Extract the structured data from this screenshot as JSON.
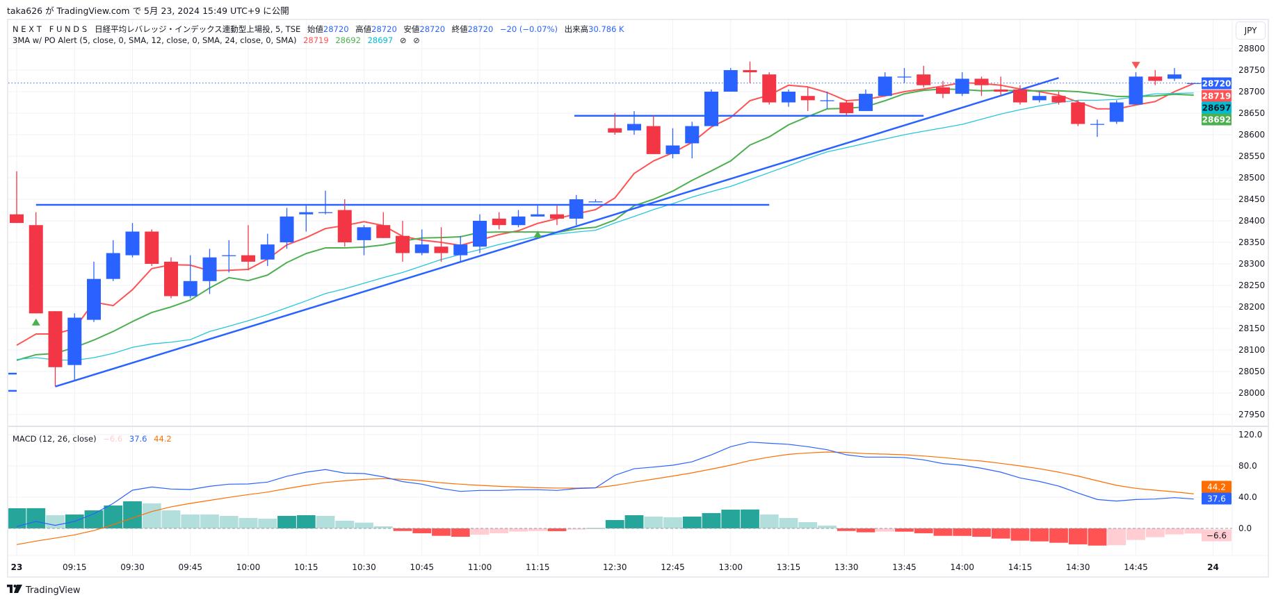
{
  "publish_line": "taka626 が TradingView.com で 5月 23, 2024 15:49 UTC+9 に公開",
  "legend": {
    "symbol": "N E X T   F U N D S   日経平均レバレッジ・インデックス連動型上場投, 5, TSE",
    "open_label": "始値",
    "open": "28720",
    "high_label": "高値",
    "high": "28720",
    "low_label": "安値",
    "low": "28720",
    "close_label": "終値",
    "close": "28720",
    "change": "−20 (−0.07%)",
    "volume_label": "出来高",
    "volume": "30.786 K"
  },
  "indicator": {
    "name": "3MA w/ PO Alert (5, close, 0, SMA, 12, close, 0, SMA, 24, close, 0, SMA)",
    "value_fast": "28719",
    "value_mid": "28692",
    "value_slow": "28697",
    "icon1": "⊘",
    "icon2": "⊘"
  },
  "macd_legend": {
    "name": "MACD (12, 26, close)",
    "hist": "−6.6",
    "macd": "37.6",
    "signal": "44.2"
  },
  "currency_button": "JPY",
  "logo": "TradingView",
  "colors": {
    "up": "#2962ff",
    "down": "#f23645",
    "ma5": "#ff5252",
    "ma12": "#4caf50",
    "ma24": "#26c6da",
    "drawing": "#2962ff",
    "macd": "#2962ff",
    "signal": "#ff6d00",
    "hist_up_strong": "#26a69a",
    "hist_up_weak": "#b2dfdb",
    "hist_down_strong": "#ff5252",
    "hist_down_weak": "#ffcdd2"
  },
  "chart_data": {
    "type": "candlestick",
    "price_axis": {
      "ticks": [
        28800,
        28750,
        28700,
        28650,
        28600,
        28550,
        28500,
        28450,
        28400,
        28350,
        28300,
        28250,
        28200,
        28150,
        28100,
        28050,
        28000,
        27950
      ],
      "grid": true
    },
    "time_axis": {
      "ticks": [
        {
          "label": "23",
          "bar": 0
        },
        {
          "label": "09:15",
          "bar": 3
        },
        {
          "label": "09:30",
          "bar": 6
        },
        {
          "label": "09:45",
          "bar": 9
        },
        {
          "label": "10:00",
          "bar": 12
        },
        {
          "label": "10:15",
          "bar": 15
        },
        {
          "label": "10:30",
          "bar": 18
        },
        {
          "label": "10:45",
          "bar": 21
        },
        {
          "label": "11:00",
          "bar": 24
        },
        {
          "label": "11:15",
          "bar": 27
        },
        {
          "label": "12:30",
          "bar": 31
        },
        {
          "label": "12:45",
          "bar": 34
        },
        {
          "label": "13:00",
          "bar": 37
        },
        {
          "label": "13:15",
          "bar": 40
        },
        {
          "label": "13:30",
          "bar": 43
        },
        {
          "label": "13:45",
          "bar": 46
        },
        {
          "label": "14:00",
          "bar": 49
        },
        {
          "label": "14:15",
          "bar": 52
        },
        {
          "label": "14:30",
          "bar": 55
        },
        {
          "label": "14:45",
          "bar": 58
        },
        {
          "label": "24",
          "bar": 62
        }
      ]
    },
    "candles_ohlc": [
      [
        28415,
        28515,
        28395,
        28395
      ],
      [
        28390,
        28420,
        28185,
        28185
      ],
      [
        28190,
        28190,
        28015,
        28060
      ],
      [
        28065,
        28185,
        28030,
        28175
      ],
      [
        28170,
        28305,
        28165,
        28265
      ],
      [
        28265,
        28355,
        28260,
        28325
      ],
      [
        28320,
        28395,
        28315,
        28375
      ],
      [
        28375,
        28380,
        28295,
        28300
      ],
      [
        28305,
        28315,
        28220,
        28225
      ],
      [
        28225,
        28320,
        28220,
        28260
      ],
      [
        28260,
        28335,
        28230,
        28315
      ],
      [
        28320,
        28355,
        28280,
        28320
      ],
      [
        28320,
        28390,
        28285,
        28305
      ],
      [
        28310,
        28370,
        28295,
        28345
      ],
      [
        28350,
        28430,
        28335,
        28410
      ],
      [
        28415,
        28435,
        28375,
        28420
      ],
      [
        28420,
        28470,
        28415,
        28420
      ],
      [
        28425,
        28450,
        28340,
        28350
      ],
      [
        28355,
        28390,
        28320,
        28385
      ],
      [
        28390,
        28420,
        28360,
        28360
      ],
      [
        28365,
        28400,
        28305,
        28325
      ],
      [
        28325,
        28380,
        28320,
        28345
      ],
      [
        28340,
        28385,
        28305,
        28325
      ],
      [
        28320,
        28365,
        28305,
        28345
      ],
      [
        28340,
        28415,
        28325,
        28400
      ],
      [
        28405,
        28420,
        28380,
        28390
      ],
      [
        28390,
        28425,
        28385,
        28410
      ],
      [
        28410,
        28435,
        28410,
        28415
      ],
      [
        28415,
        28435,
        28390,
        28405
      ],
      [
        28405,
        28460,
        28390,
        28450
      ],
      [
        28445,
        28450,
        28445,
        28445
      ],
      [
        28615,
        28650,
        28600,
        28605
      ],
      [
        28610,
        28655,
        28600,
        28625
      ],
      [
        28620,
        28645,
        28555,
        28555
      ],
      [
        28555,
        28615,
        28545,
        28575
      ],
      [
        28580,
        28630,
        28545,
        28620
      ],
      [
        28620,
        28705,
        28620,
        28700
      ],
      [
        28700,
        28755,
        28700,
        28750
      ],
      [
        28750,
        28770,
        28720,
        28745
      ],
      [
        28740,
        28745,
        28670,
        28675
      ],
      [
        28675,
        28705,
        28665,
        28700
      ],
      [
        28690,
        28710,
        28655,
        28680
      ],
      [
        28680,
        28700,
        28660,
        28680
      ],
      [
        28675,
        28680,
        28645,
        28650
      ],
      [
        28655,
        28705,
        28655,
        28695
      ],
      [
        28690,
        28745,
        28690,
        28735
      ],
      [
        28735,
        28755,
        28720,
        28735
      ],
      [
        28740,
        28760,
        28710,
        28715
      ],
      [
        28710,
        28725,
        28685,
        28695
      ],
      [
        28695,
        28745,
        28690,
        28730
      ],
      [
        28730,
        28735,
        28690,
        28715
      ],
      [
        28705,
        28735,
        28690,
        28700
      ],
      [
        28705,
        28715,
        28670,
        28675
      ],
      [
        28680,
        28700,
        28675,
        28690
      ],
      [
        28690,
        28700,
        28670,
        28675
      ],
      [
        28675,
        28680,
        28620,
        28625
      ],
      [
        28625,
        28635,
        28595,
        28625
      ],
      [
        28630,
        28680,
        28625,
        28675
      ],
      [
        28670,
        28745,
        28670,
        28735
      ],
      [
        28735,
        28750,
        28715,
        28725
      ],
      [
        28730,
        28755,
        28725,
        28740
      ],
      [
        28720,
        28720,
        28720,
        28720
      ]
    ],
    "moving_averages": [
      {
        "length": 5,
        "color": "#ff5252",
        "values": [
          28111,
          28137,
          28137,
          28150,
          28211,
          28203,
          28240,
          28289,
          28298,
          28297,
          28284,
          28285,
          28287,
          28311,
          28344,
          28361,
          28382,
          28389,
          28398,
          28389,
          28364,
          28355,
          28350,
          28343,
          28355,
          28368,
          28377,
          28394,
          28405,
          28416,
          28426,
          28453,
          28510,
          28539,
          28558,
          28582,
          28618,
          28640,
          28679,
          28692,
          28715,
          28711,
          28698,
          28679,
          28682,
          28690,
          28700,
          28706,
          28713,
          28721,
          28719,
          28715,
          28706,
          28700,
          28692,
          28676,
          28660,
          28660,
          28669,
          28677,
          28700,
          28719
        ]
      },
      {
        "length": 12,
        "color": "#4caf50",
        "values": [
          28076,
          28089,
          28092,
          28106,
          28123,
          28143,
          28166,
          28187,
          28200,
          28216,
          28244,
          28268,
          28261,
          28274,
          28303,
          28324,
          28337,
          28337,
          28339,
          28344,
          28353,
          28360,
          28361,
          28363,
          28373,
          28374,
          28374,
          28374,
          28373,
          28381,
          28385,
          28402,
          28435,
          28450,
          28469,
          28494,
          28516,
          28539,
          28576,
          28595,
          28623,
          28642,
          28660,
          28661,
          28665,
          28679,
          28695,
          28703,
          28706,
          28705,
          28702,
          28703,
          28702,
          28702,
          28702,
          28700,
          28695,
          28689,
          28689,
          28690,
          28694,
          28692
        ]
      },
      {
        "length": 24,
        "color": "#26c6da",
        "values": [
          28078,
          28082,
          28077,
          28076,
          28082,
          28092,
          28106,
          28114,
          28118,
          28124,
          28143,
          28155,
          28168,
          28182,
          28198,
          28214,
          28231,
          28242,
          28255,
          28268,
          28280,
          28295,
          28310,
          28322,
          28333,
          28345,
          28355,
          28364,
          28369,
          28374,
          28378,
          28395,
          28410,
          28426,
          28440,
          28455,
          28468,
          28480,
          28496,
          28512,
          28528,
          28545,
          28560,
          28570,
          28580,
          28590,
          28600,
          28608,
          28616,
          28624,
          28636,
          28648,
          28658,
          28667,
          28675,
          28680,
          28680,
          28682,
          28688,
          28695,
          28696,
          28697
        ]
      }
    ],
    "signal_markers": [
      {
        "bar": 1,
        "price": 28165,
        "direction": "up",
        "color": "#4caf50"
      },
      {
        "bar": 27,
        "price": 28369,
        "direction": "up",
        "color": "#4caf50"
      },
      {
        "bar": 58,
        "price": 28761,
        "direction": "down",
        "color": "#ff5252"
      }
    ],
    "drawings": [
      {
        "kind": "horizontal",
        "from_bar": 1,
        "to_bar": 39,
        "price": 28437
      },
      {
        "kind": "horizontal",
        "from_bar": 28.9,
        "to_bar": 47,
        "price": 28644
      },
      {
        "kind": "trend",
        "from_bar": 2,
        "from_price": 28015,
        "to_bar": 54,
        "to_price": 28732
      },
      {
        "kind": "horizontal",
        "from_bar": -0.5,
        "to_bar": 0,
        "price": 28045
      },
      {
        "kind": "horizontal",
        "from_bar": -0.5,
        "to_bar": 0,
        "price": 28005
      }
    ],
    "last_price": 28720,
    "price_tags": [
      {
        "text": "28720",
        "bg": "#2962ff",
        "fg": "#ffffff"
      },
      {
        "text": "28719",
        "bg": "#ff5252",
        "fg": "#ffffff"
      },
      {
        "text": "28697",
        "bg": "#00bcd4",
        "fg": "#131722"
      },
      {
        "text": "28692",
        "bg": "#4caf50",
        "fg": "#ffffff"
      }
    ],
    "macd": {
      "axis_ticks": [
        "120.0",
        "80.0",
        "40.0",
        "0.0"
      ],
      "histogram": [
        25.8,
        25.9,
        16.9,
        17.8,
        23.1,
        29.3,
        34.7,
        32,
        23.1,
        17.8,
        17.8,
        16,
        13.3,
        12.4,
        16,
        16.9,
        16,
        9.8,
        7.4,
        2.7,
        -3.3,
        -6.2,
        -9.5,
        -10.7,
        -8,
        -6.2,
        -4.1,
        -3.3,
        -3.5,
        -1.5,
        0.3,
        10.7,
        16.9,
        15.1,
        14.2,
        15.1,
        19.6,
        24,
        24.2,
        17.8,
        13.3,
        8,
        3.6,
        -3.3,
        -5,
        -4.1,
        -4.2,
        -6.2,
        -9.5,
        -9.6,
        -10.7,
        -13,
        -15.7,
        -16.6,
        -18.4,
        -20.4,
        -22,
        -21.5,
        -14.8,
        -11.3,
        -7.7,
        -6.6
      ],
      "macd_line": [
        2.4,
        8.9,
        3.9,
        8.9,
        18.7,
        32,
        48.9,
        53,
        50.4,
        49.8,
        53.9,
        56.6,
        56.9,
        59.3,
        66.7,
        72,
        75.3,
        70.8,
        70.2,
        66,
        59.9,
        56.6,
        51,
        47.4,
        48.6,
        48.6,
        49.5,
        49.5,
        48.6,
        51,
        51.9,
        68,
        76.4,
        78.5,
        80.9,
        85.3,
        94.2,
        104.6,
        110.5,
        109,
        107.6,
        104.6,
        100.7,
        94.2,
        91.3,
        91.3,
        90.7,
        87.7,
        83,
        80.9,
        77,
        72,
        64.6,
        60.1,
        54.2,
        45.3,
        37,
        35,
        37,
        37.6,
        39.4,
        37.6
      ],
      "signal_line": [
        -20.7,
        -16.3,
        -12.4,
        -8.3,
        -2.7,
        4.7,
        13.3,
        21.6,
        27.6,
        32,
        35.9,
        39.7,
        43.3,
        46.5,
        51,
        55.1,
        58.7,
        61,
        62.8,
        63.7,
        62.8,
        61,
        58.4,
        56.6,
        55.1,
        53.9,
        53,
        52.1,
        51.6,
        51.6,
        52.1,
        55,
        59.3,
        63.1,
        67,
        71.1,
        75.9,
        80.9,
        86.8,
        91.3,
        94.8,
        96.6,
        97.8,
        97.2,
        95.7,
        95.1,
        94.2,
        92.7,
        90.7,
        88.3,
        86.2,
        83.3,
        80,
        76.4,
        72,
        67,
        61,
        55.1,
        51.3,
        48.9,
        46.8,
        44.2
      ],
      "tags": [
        {
          "text": "44.2",
          "value": 44.2,
          "bg": "#ff6d00",
          "fg": "#ffffff"
        },
        {
          "text": "37.6",
          "value": 37.6,
          "bg": "#2962ff",
          "fg": "#ffffff"
        },
        {
          "text": "−6.6",
          "value": -6.6,
          "bg": "#ffcdd2",
          "fg": "#131722"
        }
      ]
    }
  }
}
